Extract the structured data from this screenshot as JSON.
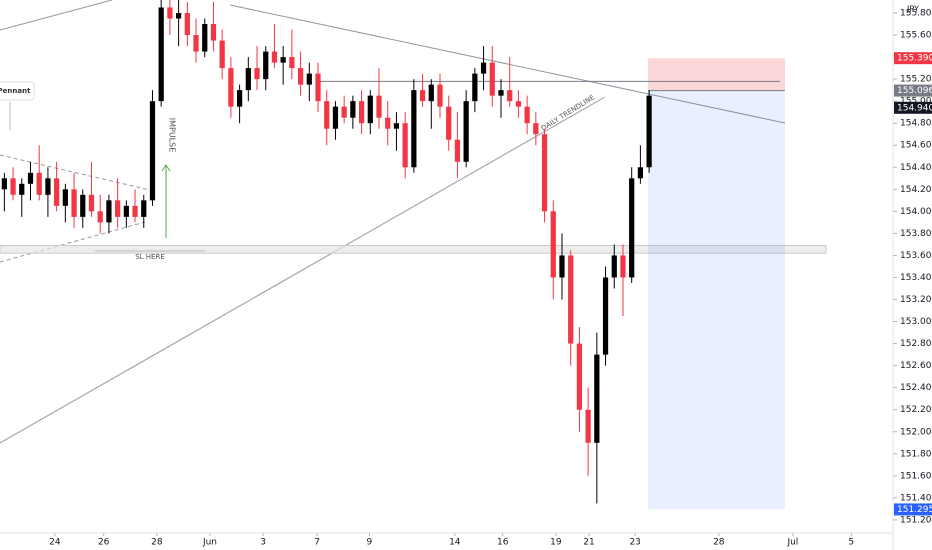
{
  "chart_data": {
    "type": "candlestick",
    "currency": "JPY",
    "up_color": "#000000",
    "down_color": "#f23645",
    "xlim": [
      0,
      101
    ],
    "ylim": [
      151.054,
      155.918
    ],
    "xticks": [
      {
        "value": 6.3,
        "label": "24"
      },
      {
        "value": 11.9,
        "label": "26"
      },
      {
        "value": 18.0,
        "label": "28"
      },
      {
        "value": 24.1,
        "label": "Jun"
      },
      {
        "value": 30.2,
        "label": "3"
      },
      {
        "value": 36.4,
        "label": "7"
      },
      {
        "value": 42.4,
        "label": "9"
      },
      {
        "value": 52.2,
        "label": "14"
      },
      {
        "value": 57.7,
        "label": "16"
      },
      {
        "value": 63.8,
        "label": "19"
      },
      {
        "value": 67.6,
        "label": "21"
      },
      {
        "value": 72.9,
        "label": "23"
      },
      {
        "value": 82.5,
        "label": "28"
      },
      {
        "value": 91.0,
        "label": "Jul"
      },
      {
        "value": 97.7,
        "label": "5"
      }
    ],
    "yticks": [
      {
        "value": 151.2,
        "label": "151.200"
      },
      {
        "value": 151.4,
        "label": "151.400"
      },
      {
        "value": 151.6,
        "label": "151.600"
      },
      {
        "value": 151.8,
        "label": "151.800"
      },
      {
        "value": 152.0,
        "label": "152.000"
      },
      {
        "value": 152.2,
        "label": "152.200"
      },
      {
        "value": 152.4,
        "label": "152.400"
      },
      {
        "value": 152.6,
        "label": "152.600"
      },
      {
        "value": 152.8,
        "label": "152.800"
      },
      {
        "value": 153.0,
        "label": "153.000"
      },
      {
        "value": 153.2,
        "label": "153.200"
      },
      {
        "value": 153.4,
        "label": "153.400"
      },
      {
        "value": 153.6,
        "label": "153.600"
      },
      {
        "value": 153.8,
        "label": "153.800"
      },
      {
        "value": 154.0,
        "label": "154.000"
      },
      {
        "value": 154.2,
        "label": "154.200"
      },
      {
        "value": 154.4,
        "label": "154.400"
      },
      {
        "value": 154.6,
        "label": "154.600"
      },
      {
        "value": 154.8,
        "label": "154.800"
      },
      {
        "value": 155.0,
        "label": "155.000"
      },
      {
        "value": 155.2,
        "label": "155.200"
      },
      {
        "value": 155.4,
        "label": "155.400"
      },
      {
        "value": 155.6,
        "label": "155.600"
      },
      {
        "value": 155.8,
        "label": "155.800"
      }
    ],
    "ohlc": [
      [
        154.2,
        154.35,
        154.0,
        154.3
      ],
      [
        154.3,
        154.4,
        154.1,
        154.15
      ],
      [
        154.15,
        154.3,
        153.95,
        154.25
      ],
      [
        154.25,
        154.45,
        154.1,
        154.35
      ],
      [
        154.35,
        154.6,
        154.1,
        154.15
      ],
      [
        154.15,
        154.4,
        153.95,
        154.3
      ],
      [
        154.3,
        154.45,
        154.0,
        154.05
      ],
      [
        154.05,
        154.25,
        153.9,
        154.2
      ],
      [
        154.2,
        154.35,
        153.85,
        153.95
      ],
      [
        153.95,
        154.2,
        153.85,
        154.15
      ],
      [
        154.15,
        154.45,
        153.95,
        154.0
      ],
      [
        154.0,
        154.15,
        153.8,
        153.9
      ],
      [
        153.9,
        154.15,
        153.8,
        154.1
      ],
      [
        154.1,
        154.3,
        153.85,
        153.95
      ],
      [
        153.95,
        154.1,
        153.85,
        154.05
      ],
      [
        154.05,
        154.2,
        153.9,
        153.95
      ],
      [
        153.95,
        154.15,
        153.85,
        154.1
      ],
      [
        154.1,
        155.1,
        154.05,
        155.0
      ],
      [
        155.0,
        155.95,
        154.95,
        155.85
      ],
      [
        155.85,
        155.95,
        155.6,
        155.75
      ],
      [
        155.75,
        155.95,
        155.5,
        155.8
      ],
      [
        155.8,
        155.9,
        155.5,
        155.6
      ],
      [
        155.6,
        155.75,
        155.35,
        155.45
      ],
      [
        155.45,
        155.75,
        155.4,
        155.7
      ],
      [
        155.7,
        155.9,
        155.45,
        155.55
      ],
      [
        155.55,
        155.65,
        155.2,
        155.3
      ],
      [
        155.3,
        155.4,
        154.85,
        154.95
      ],
      [
        154.95,
        155.15,
        154.8,
        155.1
      ],
      [
        155.1,
        155.4,
        155.0,
        155.3
      ],
      [
        155.3,
        155.5,
        155.1,
        155.2
      ],
      [
        155.2,
        155.5,
        155.1,
        155.45
      ],
      [
        155.45,
        155.7,
        155.3,
        155.35
      ],
      [
        155.35,
        155.5,
        155.15,
        155.4
      ],
      [
        155.4,
        155.65,
        155.2,
        155.3
      ],
      [
        155.3,
        155.45,
        155.05,
        155.15
      ],
      [
        155.15,
        155.35,
        155.0,
        155.25
      ],
      [
        155.25,
        155.35,
        154.9,
        155.0
      ],
      [
        155.0,
        155.1,
        154.6,
        154.75
      ],
      [
        154.75,
        155.0,
        154.65,
        154.95
      ],
      [
        154.95,
        155.05,
        154.8,
        154.85
      ],
      [
        154.85,
        155.05,
        154.75,
        155.0
      ],
      [
        155.0,
        155.1,
        154.7,
        154.8
      ],
      [
        154.8,
        155.1,
        154.7,
        155.05
      ],
      [
        155.05,
        155.3,
        154.75,
        154.85
      ],
      [
        154.85,
        155.0,
        154.6,
        154.75
      ],
      [
        154.75,
        154.9,
        154.55,
        154.8
      ],
      [
        154.8,
        154.9,
        154.3,
        154.4
      ],
      [
        154.4,
        155.2,
        154.35,
        155.1
      ],
      [
        155.1,
        155.25,
        154.95,
        155.0
      ],
      [
        155.0,
        155.2,
        154.75,
        155.15
      ],
      [
        155.15,
        155.25,
        154.85,
        154.95
      ],
      [
        154.95,
        155.05,
        154.55,
        154.65
      ],
      [
        154.65,
        154.9,
        154.3,
        154.45
      ],
      [
        154.45,
        155.1,
        154.4,
        155.0
      ],
      [
        155.0,
        155.3,
        154.9,
        155.25
      ],
      [
        155.25,
        155.5,
        155.1,
        155.35
      ],
      [
        155.35,
        155.5,
        154.95,
        155.05
      ],
      [
        155.05,
        155.2,
        154.85,
        155.1
      ],
      [
        155.1,
        155.4,
        154.95,
        155.0
      ],
      [
        155.0,
        155.1,
        154.85,
        154.95
      ],
      [
        154.95,
        155.05,
        154.7,
        154.8
      ],
      [
        154.8,
        154.9,
        154.6,
        154.7
      ],
      [
        154.7,
        154.75,
        153.9,
        154.0
      ],
      [
        154.0,
        154.1,
        153.2,
        153.4
      ],
      [
        153.4,
        153.8,
        153.2,
        153.6
      ],
      [
        153.6,
        153.65,
        152.6,
        152.8
      ],
      [
        152.8,
        152.95,
        152.0,
        152.2
      ],
      [
        152.2,
        152.4,
        151.6,
        151.9
      ],
      [
        151.9,
        152.9,
        151.35,
        152.7
      ],
      [
        152.7,
        153.5,
        152.6,
        153.4
      ],
      [
        153.4,
        153.7,
        153.3,
        153.6
      ],
      [
        153.6,
        153.7,
        153.05,
        153.4
      ],
      [
        153.4,
        154.4,
        153.35,
        154.3
      ],
      [
        154.3,
        154.6,
        154.25,
        154.4
      ],
      [
        154.4,
        155.1,
        154.35,
        155.05
      ]
    ],
    "last_price": {
      "value": 154.94,
      "label": "154.940"
    },
    "position": {
      "stop": {
        "value": 155.39,
        "label": "155.390"
      },
      "entry": {
        "value": 155.096,
        "label": "155.096"
      },
      "target": {
        "value": 151.295,
        "label": "151.295"
      }
    },
    "level": 155.18,
    "zone": [
      153.62,
      153.69
    ],
    "annotations": {
      "pennant": "Pennant",
      "impulse": "IMPULSE",
      "sl": "SL HERE",
      "trendline": "DAILY TRENDLINE"
    }
  }
}
